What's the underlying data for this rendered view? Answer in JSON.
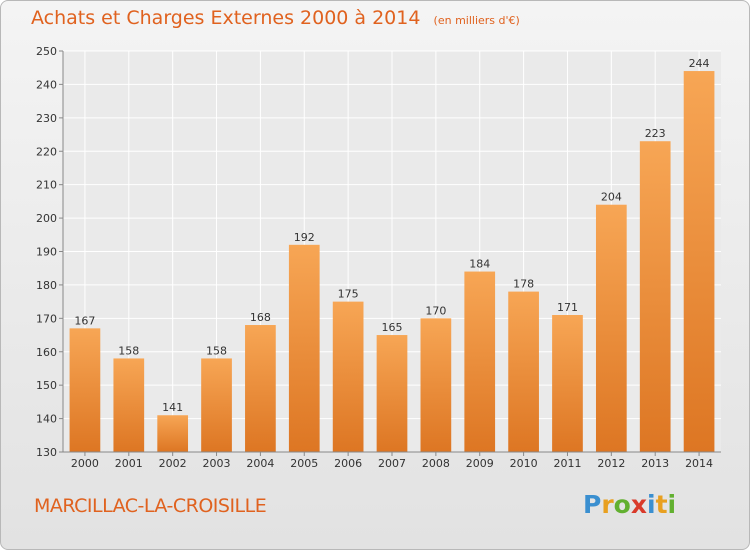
{
  "header": {
    "title": "Achats et Charges Externes 2000 à 2014",
    "unit": "(en milliers d'€)"
  },
  "footer": {
    "commune": "MARCILLAC-LA-CROISILLE",
    "logo": "Proxiti"
  },
  "colors": {
    "title": "#e0621f",
    "bar_top": "#f7a655",
    "bar_bottom": "#dd7623"
  },
  "chart_data": {
    "type": "bar",
    "title": "Achats et Charges Externes 2000 à 2014",
    "subtitle": "(en milliers d'€)",
    "xlabel": "",
    "ylabel": "",
    "categories": [
      "2000",
      "2001",
      "2002",
      "2003",
      "2004",
      "2005",
      "2006",
      "2007",
      "2008",
      "2009",
      "2010",
      "2011",
      "2012",
      "2013",
      "2014"
    ],
    "values": [
      167,
      158,
      141,
      158,
      168,
      192,
      175,
      165,
      170,
      184,
      178,
      171,
      204,
      223,
      244
    ],
    "ylim": [
      130,
      250
    ],
    "yticks": [
      130,
      140,
      150,
      160,
      170,
      180,
      190,
      200,
      210,
      220,
      230,
      240,
      250
    ],
    "grid": true,
    "data_labels": true
  }
}
